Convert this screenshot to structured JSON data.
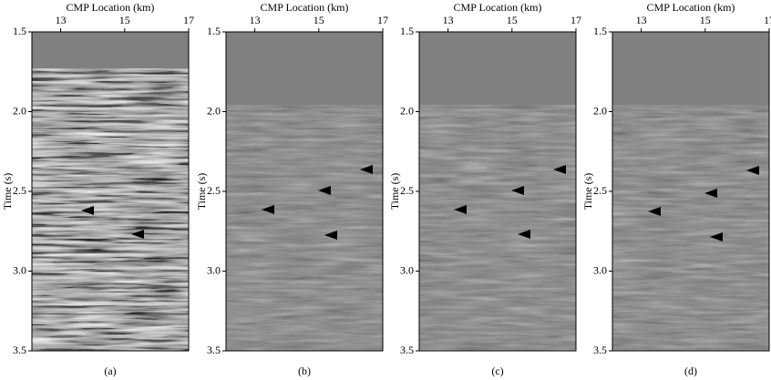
{
  "chart_data": [
    {
      "type": "image",
      "xlabel": "CMP Location (km)",
      "ylabel": "Time (s)",
      "xlim": [
        12.1,
        17
      ],
      "xticks": [
        13,
        15,
        17
      ],
      "ylim": [
        1.5,
        3.5
      ],
      "yticks": [
        1.5,
        {
          "value": 2,
          "label": "2.0"
        },
        2.5,
        {
          "value": 3,
          "label": "3.0"
        },
        3.5
      ],
      "caption": "(a)"
    },
    {
      "type": "image",
      "xlabel": "CMP Location (km)",
      "ylabel": "Time (s)",
      "xlim": [
        12.1,
        17
      ],
      "xticks": [
        13,
        15,
        17
      ],
      "ylim": [
        1.5,
        3.5
      ],
      "yticks": [
        1.5,
        {
          "value": 2,
          "label": "2.0"
        },
        2.5,
        {
          "value": 3,
          "label": "3.0"
        },
        3.5
      ],
      "caption": "(b)"
    },
    {
      "type": "image",
      "xlabel": "CMP Location (km)",
      "ylabel": "Time (s)",
      "xlim": [
        12.1,
        17
      ],
      "xticks": [
        13,
        15,
        17
      ],
      "ylim": [
        1.5,
        3.5
      ],
      "yticks": [
        1.5,
        {
          "value": 2,
          "label": "2.0"
        },
        2.5,
        {
          "value": 3,
          "label": "3.0"
        },
        3.5
      ],
      "caption": "(c)"
    },
    {
      "type": "image",
      "xlabel": "CMP Location (km)",
      "ylabel": "Time (s)",
      "xlim": [
        12.1,
        17
      ],
      "xticks": [
        13,
        15,
        17
      ],
      "ylim": [
        1.5,
        3.5
      ],
      "yticks": [
        1.5,
        {
          "value": 2,
          "label": "2.0"
        },
        2.5,
        {
          "value": 3,
          "label": "3.0"
        },
        3.5
      ],
      "caption": "(d)"
    }
  ]
}
